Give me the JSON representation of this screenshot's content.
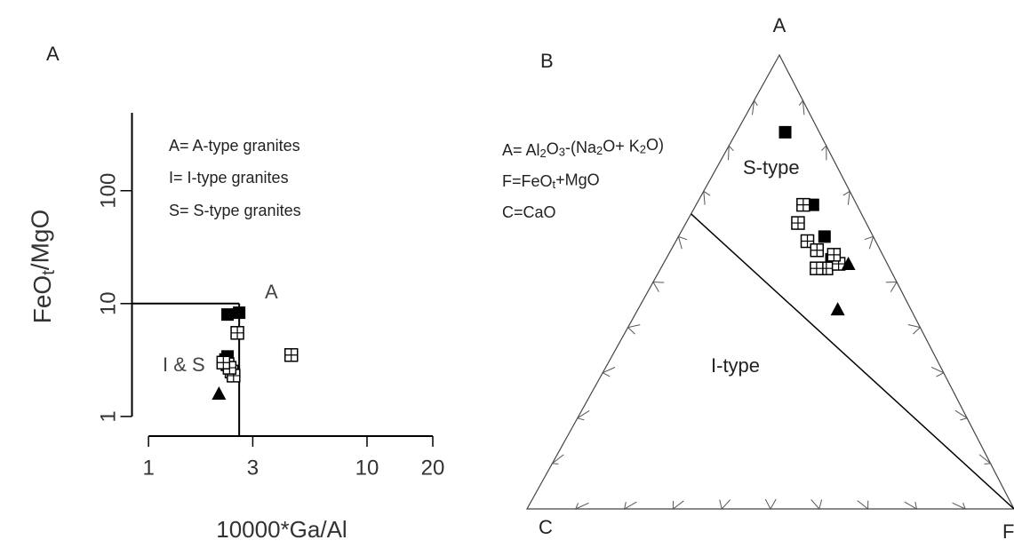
{
  "chart_data": [
    {
      "type": "scatter",
      "panel_label": "A",
      "xlabel": "10000*Ga/Al",
      "ylabel": [
        "FeO",
        "t",
        "/MgO"
      ],
      "xscale": "log",
      "yscale": "log",
      "xlim": [
        0.84,
        20
      ],
      "ylim": [
        0.67,
        490
      ],
      "xticks": [
        1,
        3,
        10,
        20
      ],
      "yticks": [
        1,
        10,
        100
      ],
      "legend_text": [
        "A= A-type granites",
        "I= I-type granites",
        "S= S-type granites"
      ],
      "boundary": {
        "x": 2.6,
        "y": 10
      },
      "region_labels": [
        "A",
        "I & S"
      ],
      "series": [
        {
          "marker": "filled-square",
          "color": "#000000",
          "x": [
            2.3,
            2.6,
            2.25,
            2.3
          ],
          "y": [
            8,
            8.3,
            3.2,
            3.4
          ]
        },
        {
          "marker": "open-square",
          "color": "#000000",
          "x": [
            2.55,
            4.5,
            2.3,
            2.4,
            2.45,
            2.35,
            2.2
          ],
          "y": [
            5.5,
            3.5,
            2.9,
            2.5,
            2.3,
            2.7,
            3.0
          ]
        },
        {
          "marker": "triangle",
          "color": "#000000",
          "x": [
            2.1
          ],
          "y": [
            1.6
          ]
        }
      ]
    },
    {
      "type": "ternary",
      "panel_label": "B",
      "vertex_labels": {
        "A": "A",
        "C": "C",
        "F": "F"
      },
      "legend_text": [
        [
          "A= Al",
          "2",
          "O",
          "3",
          "-(Na",
          "2",
          "O+ K",
          "2",
          "O)"
        ],
        [
          "F=FeO",
          "t",
          "+MgO"
        ],
        [
          "C=CaO"
        ]
      ],
      "region_labels": [
        "S-type",
        "I-type"
      ],
      "boundary": [
        {
          "A": 65,
          "C": 35,
          "F": 0
        },
        {
          "A": 0,
          "C": 0,
          "F": 100
        }
      ],
      "series": [
        {
          "marker": "filled-square",
          "color": "#000000",
          "A": [
            83,
            67,
            60,
            55
          ],
          "C": [
            7,
            9,
            10,
            11
          ],
          "F": [
            10,
            24,
            30,
            34
          ]
        },
        {
          "marker": "open-square",
          "color": "#000000",
          "A": [
            67,
            63,
            59,
            57,
            53,
            54,
            53,
            56
          ],
          "C": [
            11,
            14,
            14,
            13,
            13,
            10,
            15,
            10
          ],
          "F": [
            22,
            23,
            27,
            30,
            34,
            36,
            32,
            34
          ]
        },
        {
          "marker": "triangle",
          "color": "#000000",
          "A": [
            54,
            44
          ],
          "C": [
            8,
            15
          ],
          "F": [
            38,
            41
          ]
        }
      ]
    }
  ]
}
